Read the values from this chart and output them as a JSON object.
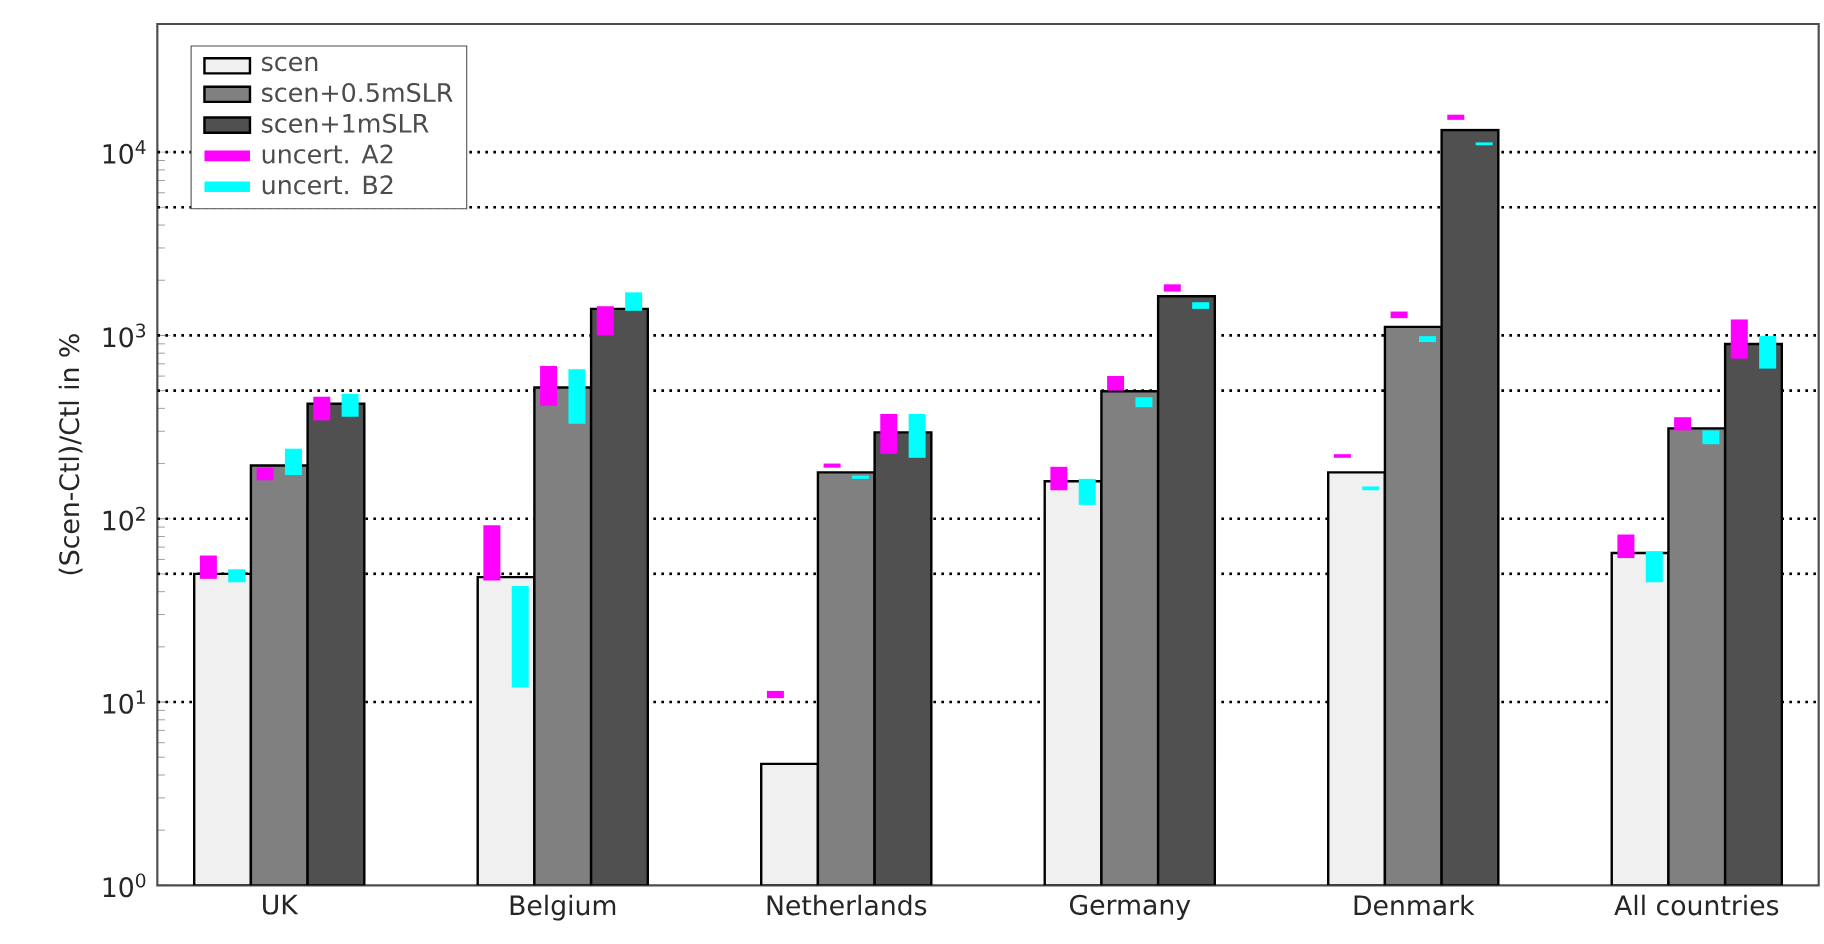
{
  "chart_data": {
    "type": "bar",
    "ylabel": "(Scen-Ctl)/Ctl in %",
    "log": "y",
    "legend": "top left",
    "grid": false,
    "categories": [
      "UK",
      "Belgium",
      "Netherlands",
      "Germany",
      "Denmark",
      "All countries"
    ],
    "ylim": [
      1,
      50000
    ],
    "yticks": [
      {
        "value": 1,
        "label": "10$^{0}$"
      },
      {
        "value": 10,
        "label": "10$^{1}$"
      },
      {
        "value": 100,
        "label": "10$^{2}$"
      },
      {
        "value": 1000,
        "label": "10$^{3}$"
      },
      {
        "value": 10000,
        "label": "10$^{4}$"
      }
    ],
    "ref_lines": [
      {
        "axis": "y",
        "value": 10,
        "color": "#000000",
        "line_style": "dotted"
      },
      {
        "axis": "y",
        "value": 50,
        "color": "#000000",
        "line_style": "dotted"
      },
      {
        "axis": "y",
        "value": 100,
        "color": "#000000",
        "line_style": "dotted"
      },
      {
        "axis": "y",
        "value": 500,
        "color": "#000000",
        "line_style": "dotted"
      },
      {
        "axis": "y",
        "value": 1000,
        "color": "#000000",
        "line_style": "dotted"
      },
      {
        "axis": "y",
        "value": 5000,
        "color": "#000000",
        "line_style": "dotted"
      },
      {
        "axis": "y",
        "value": 10000,
        "color": "#000000",
        "line_style": "dotted"
      }
    ],
    "series": [
      {
        "name": "scen",
        "color": "#f0f0f0",
        "values": [
          50,
          48,
          4.6,
          160,
          179,
          65
        ]
      },
      {
        "name": "scen+0.5mSLR",
        "color": "#808080",
        "values": [
          195,
          520,
          179,
          496,
          1114,
          311
        ]
      },
      {
        "name": "scen+1mSLR",
        "color": "#505050",
        "values": [
          424,
          1395,
          296,
          1636,
          13200,
          897
        ]
      },
      {
        "name": "uncert. A2",
        "type": "bar",
        "color": "#ff00ff",
        "base": [
          47,
          46,
          10.5,
          143,
          215,
          61
        ],
        "values": [
          16,
          46,
          1,
          49,
          10,
          21
        ]
      },
      {
        "type": "bar",
        "color": "#ff00ff",
        "base": [
          162,
          413,
          190,
          500,
          1242,
          303
        ],
        "values": [
          28,
          268,
          10,
          101,
          108,
          55
        ]
      },
      {
        "type": "bar",
        "color": "#ff00ff",
        "base": [
          344,
          1000,
          226,
          1735,
          15000,
          747
        ],
        "values": [
          119,
          443,
          147,
          165,
          1000,
          475
        ]
      },
      {
        "name": "uncert. B2",
        "type": "bar",
        "color": "#00ffff",
        "base": [
          45,
          12,
          null,
          119,
          143,
          45
        ],
        "values": [
          8,
          31,
          null,
          46,
          7,
          21
        ]
      },
      {
        "type": "bar",
        "color": "#00ffff",
        "base": [
          173,
          330,
          165,
          406,
          920,
          255
        ],
        "values": [
          68,
          323,
          7,
          54,
          71,
          48
        ]
      },
      {
        "type": "bar",
        "color": "#00ffff",
        "base": [
          360,
          1362,
          215,
          1396,
          10900,
          659
        ],
        "values": [
          120,
          356,
          158,
          122,
          400,
          333
        ]
      }
    ]
  }
}
